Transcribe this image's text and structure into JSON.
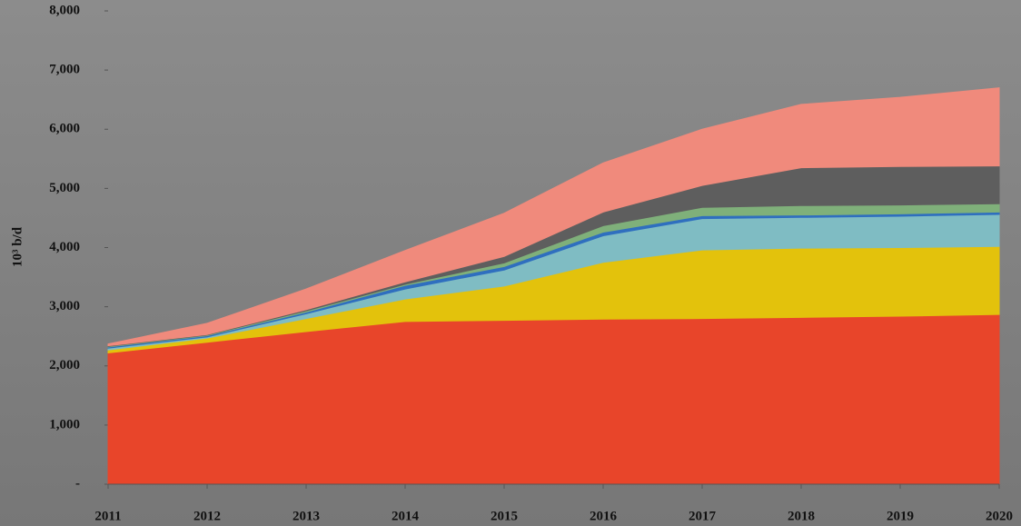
{
  "chart_data": {
    "type": "stacked_area",
    "ylabel": "10³ b/d",
    "categories": [
      "2011",
      "2012",
      "2013",
      "2014",
      "2015",
      "2016",
      "2017",
      "2018",
      "2019",
      "2020"
    ],
    "series": [
      {
        "color": "#e8452a",
        "values": [
          2220,
          2400,
          2580,
          2750,
          2770,
          2790,
          2800,
          2820,
          2840,
          2870
        ]
      },
      {
        "color": "#e3c20c",
        "values": [
          50,
          70,
          220,
          380,
          580,
          960,
          1160,
          1170,
          1160,
          1150
        ]
      },
      {
        "color": "#7fbcc3",
        "values": [
          30,
          20,
          80,
          170,
          270,
          450,
          530,
          520,
          530,
          540
        ]
      },
      {
        "color": "#2f6fbf",
        "values": [
          20,
          20,
          30,
          60,
          60,
          60,
          50,
          40,
          40,
          40
        ]
      },
      {
        "color": "#7fb07a",
        "values": [
          10,
          10,
          20,
          20,
          60,
          110,
          140,
          160,
          150,
          140
        ]
      },
      {
        "color": "#5e5e5e",
        "values": [
          10,
          10,
          20,
          40,
          110,
          230,
          370,
          640,
          650,
          640
        ]
      },
      {
        "color": "#f08a7c",
        "values": [
          30,
          190,
          350,
          530,
          730,
          830,
          950,
          1070,
          1170,
          1320
        ]
      }
    ],
    "ylim": [
      0,
      8000
    ],
    "yticks": [
      {
        "value": 0,
        "label": "-"
      },
      {
        "value": 1000,
        "label": "1,000"
      },
      {
        "value": 2000,
        "label": "2,000"
      },
      {
        "value": 3000,
        "label": "3,000"
      },
      {
        "value": 4000,
        "label": "4,000"
      },
      {
        "value": 5000,
        "label": "5,000"
      },
      {
        "value": 6000,
        "label": "6,000"
      },
      {
        "value": 7000,
        "label": "7,000"
      },
      {
        "value": 8000,
        "label": "8,000"
      }
    ],
    "grid": false
  }
}
